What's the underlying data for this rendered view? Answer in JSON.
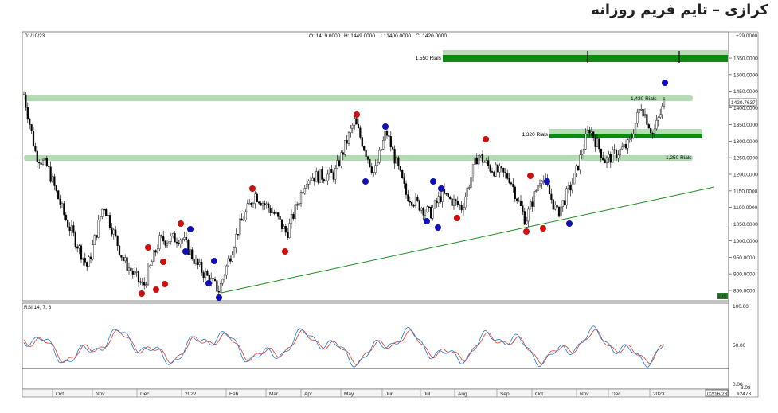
{
  "title": "کرازی – تایم فریم روزانه",
  "header": {
    "date": "01/10/23",
    "open": "O: 1419.0000",
    "high": "H: 1449.0000",
    "low": "L: 1400.0000",
    "close": "C: 1420.0000"
  },
  "price_axis": {
    "ticks": [
      "1550.0000",
      "1500.0000",
      "1450.0000",
      "1400.0000",
      "1350.0000",
      "1300.0000",
      "1250.0000",
      "1200.0000",
      "1150.0000",
      "1100.0000",
      "1050.0000",
      "1000.0000",
      "950.0000",
      "900.0000",
      "850.0000"
    ],
    "current_price": "1420.7637",
    "top_value": "+29.0000",
    "corner_label": "P/S"
  },
  "time_axis": {
    "months": [
      "Oct",
      "Nov",
      "Dec",
      "2022",
      "Feb",
      "Mar",
      "Apr",
      "May",
      "Jun",
      "Jul",
      "Aug",
      "Sep",
      "Oct",
      "Nov",
      "Dec",
      "2023"
    ],
    "end_date": "02/16/23",
    "bar_count": "#2473"
  },
  "levels": [
    {
      "label": "1,550 Rials"
    },
    {
      "label": "1,430 Rials"
    },
    {
      "label": "1,320 Rials"
    },
    {
      "label": "1,250 Rials"
    }
  ],
  "rsi": {
    "label": "RSI 14, 7, 3",
    "ticks": [
      "100.00",
      "50.00",
      "0.00"
    ],
    "last": "3.08"
  },
  "colors": {
    "band_light": "#b4dcb4",
    "band_dark": "#0a8c14",
    "trendline": "#1e8c1e",
    "circle_red": "#cc1010",
    "circle_blue": "#1010b4",
    "rsi_line": "#1f78d2",
    "rsi_signal": "#dc3c28"
  },
  "chart_data": {
    "type": "candlestick",
    "title": "کرازی – تایم فریم روزانه",
    "xlabel": "",
    "ylabel": "",
    "ylim": [
      830,
      1590
    ],
    "x": [
      "2021-09",
      "2021-10",
      "2021-11",
      "2021-12",
      "2022-01",
      "2022-02",
      "2022-03",
      "2022-04",
      "2022-05",
      "2022-06",
      "2022-07",
      "2022-08",
      "2022-09",
      "2022-10",
      "2022-11",
      "2022-12",
      "2023-01"
    ],
    "approx_close": [
      1440,
      1140,
      1000,
      880,
      1020,
      1160,
      1080,
      1180,
      1320,
      1230,
      1080,
      1250,
      1160,
      1060,
      1290,
      1300,
      1420
    ],
    "last_bar": {
      "date": "01/10/23",
      "open": 1419,
      "high": 1449,
      "low": 1400,
      "close": 1420
    },
    "support_resistance": [
      1550,
      1430,
      1320,
      1250
    ],
    "trendline": [
      {
        "x": "2022-02",
        "y": 845
      },
      {
        "x": "2023-02",
        "y": 1165
      }
    ],
    "grid": false,
    "indicator": {
      "name": "RSI 14, 7, 3",
      "ylim": [
        0,
        100
      ],
      "ticks": [
        100,
        50,
        0
      ]
    }
  }
}
